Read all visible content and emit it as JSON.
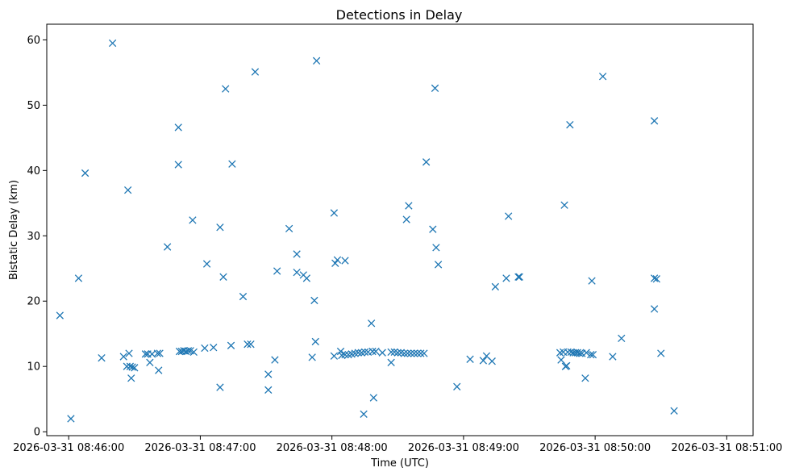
{
  "chart_data": {
    "type": "scatter",
    "title": "Detections in Delay",
    "xlabel": "Time (UTC)",
    "ylabel": "Bistatic Delay (km)",
    "marker": "x",
    "color": "#1f77b4",
    "grid": false,
    "x_unit": "seconds since 2026-03-31 08:46:00",
    "xlim": [
      -10,
      312
    ],
    "ylim": [
      -0.6,
      62.4
    ],
    "x_ticks": [
      {
        "value": 0,
        "label": "2026-03-31 08:46:00"
      },
      {
        "value": 60,
        "label": "2026-03-31 08:47:00"
      },
      {
        "value": 120,
        "label": "2026-03-31 08:48:00"
      },
      {
        "value": 180,
        "label": "2026-03-31 08:49:00"
      },
      {
        "value": 240,
        "label": "2026-03-31 08:50:00"
      },
      {
        "value": 300,
        "label": "2026-03-31 08:51:00"
      }
    ],
    "y_ticks": [
      {
        "value": 0,
        "label": "0"
      },
      {
        "value": 10,
        "label": "10"
      },
      {
        "value": 20,
        "label": "20"
      },
      {
        "value": 30,
        "label": "30"
      },
      {
        "value": 40,
        "label": "40"
      },
      {
        "value": 50,
        "label": "50"
      },
      {
        "value": 60,
        "label": "60"
      }
    ],
    "points": [
      {
        "x": -4,
        "y": 17.8
      },
      {
        "x": 1,
        "y": 2.0
      },
      {
        "x": 4.5,
        "y": 23.5
      },
      {
        "x": 7.5,
        "y": 39.6
      },
      {
        "x": 15,
        "y": 11.3
      },
      {
        "x": 20,
        "y": 59.5
      },
      {
        "x": 25,
        "y": 11.5
      },
      {
        "x": 26.5,
        "y": 10.0
      },
      {
        "x": 27,
        "y": 37.0
      },
      {
        "x": 27.5,
        "y": 12.0
      },
      {
        "x": 28,
        "y": 10.0
      },
      {
        "x": 28.5,
        "y": 8.2
      },
      {
        "x": 29,
        "y": 9.9
      },
      {
        "x": 30,
        "y": 9.8
      },
      {
        "x": 35,
        "y": 11.9
      },
      {
        "x": 36,
        "y": 11.9
      },
      {
        "x": 37,
        "y": 10.6
      },
      {
        "x": 38,
        "y": 11.9
      },
      {
        "x": 40.5,
        "y": 12.0
      },
      {
        "x": 41,
        "y": 9.4
      },
      {
        "x": 41.5,
        "y": 12.0
      },
      {
        "x": 45,
        "y": 28.3
      },
      {
        "x": 50,
        "y": 46.6
      },
      {
        "x": 50,
        "y": 40.9
      },
      {
        "x": 50.5,
        "y": 12.3
      },
      {
        "x": 51.5,
        "y": 12.3
      },
      {
        "x": 52.5,
        "y": 12.4
      },
      {
        "x": 53.5,
        "y": 12.3
      },
      {
        "x": 54.5,
        "y": 12.4
      },
      {
        "x": 55.5,
        "y": 12.4
      },
      {
        "x": 56.5,
        "y": 32.4
      },
      {
        "x": 57,
        "y": 12.2
      },
      {
        "x": 62,
        "y": 12.8
      },
      {
        "x": 63,
        "y": 25.7
      },
      {
        "x": 66,
        "y": 12.9
      },
      {
        "x": 69,
        "y": 31.3
      },
      {
        "x": 69,
        "y": 6.8
      },
      {
        "x": 70.5,
        "y": 23.7
      },
      {
        "x": 71.5,
        "y": 52.5
      },
      {
        "x": 74,
        "y": 13.2
      },
      {
        "x": 74.5,
        "y": 41.0
      },
      {
        "x": 79.5,
        "y": 20.7
      },
      {
        "x": 81.5,
        "y": 13.4
      },
      {
        "x": 83,
        "y": 13.4
      },
      {
        "x": 85,
        "y": 55.1
      },
      {
        "x": 91,
        "y": 8.8
      },
      {
        "x": 91,
        "y": 6.4
      },
      {
        "x": 94,
        "y": 11.0
      },
      {
        "x": 95,
        "y": 24.6
      },
      {
        "x": 100.5,
        "y": 31.1
      },
      {
        "x": 104,
        "y": 27.2
      },
      {
        "x": 104,
        "y": 24.4
      },
      {
        "x": 107,
        "y": 24.0
      },
      {
        "x": 108.5,
        "y": 23.5
      },
      {
        "x": 111,
        "y": 11.4
      },
      {
        "x": 112,
        "y": 20.1
      },
      {
        "x": 112.5,
        "y": 13.8
      },
      {
        "x": 113,
        "y": 56.8
      },
      {
        "x": 121,
        "y": 33.5
      },
      {
        "x": 121,
        "y": 11.6
      },
      {
        "x": 121.5,
        "y": 25.8
      },
      {
        "x": 122.5,
        "y": 26.3
      },
      {
        "x": 124,
        "y": 12.3
      },
      {
        "x": 124.5,
        "y": 11.7
      },
      {
        "x": 126,
        "y": 26.2
      },
      {
        "x": 126,
        "y": 11.8
      },
      {
        "x": 127.5,
        "y": 11.8
      },
      {
        "x": 129,
        "y": 11.9
      },
      {
        "x": 130.5,
        "y": 12.0
      },
      {
        "x": 132,
        "y": 12.1
      },
      {
        "x": 133.5,
        "y": 12.1
      },
      {
        "x": 134.5,
        "y": 2.7
      },
      {
        "x": 135,
        "y": 12.2
      },
      {
        "x": 136.5,
        "y": 12.2
      },
      {
        "x": 138,
        "y": 16.6
      },
      {
        "x": 138.5,
        "y": 12.3
      },
      {
        "x": 139,
        "y": 5.2
      },
      {
        "x": 140,
        "y": 12.3
      },
      {
        "x": 143,
        "y": 12.1
      },
      {
        "x": 147,
        "y": 12.2
      },
      {
        "x": 147,
        "y": 10.6
      },
      {
        "x": 148.5,
        "y": 12.2
      },
      {
        "x": 150,
        "y": 12.1
      },
      {
        "x": 151.5,
        "y": 12.1
      },
      {
        "x": 153,
        "y": 12.0
      },
      {
        "x": 154,
        "y": 32.5
      },
      {
        "x": 154.5,
        "y": 12.0
      },
      {
        "x": 155,
        "y": 34.6
      },
      {
        "x": 156,
        "y": 12.0
      },
      {
        "x": 157.5,
        "y": 12.0
      },
      {
        "x": 159,
        "y": 12.0
      },
      {
        "x": 160.5,
        "y": 12.0
      },
      {
        "x": 162,
        "y": 12.0
      },
      {
        "x": 163,
        "y": 41.3
      },
      {
        "x": 166,
        "y": 31.0
      },
      {
        "x": 167,
        "y": 52.6
      },
      {
        "x": 167.5,
        "y": 28.2
      },
      {
        "x": 168.5,
        "y": 25.6
      },
      {
        "x": 177,
        "y": 6.9
      },
      {
        "x": 183,
        "y": 11.1
      },
      {
        "x": 189,
        "y": 10.9
      },
      {
        "x": 190.5,
        "y": 11.6
      },
      {
        "x": 193,
        "y": 10.8
      },
      {
        "x": 194.5,
        "y": 22.2
      },
      {
        "x": 199.5,
        "y": 23.5
      },
      {
        "x": 200.5,
        "y": 33.0
      },
      {
        "x": 205,
        "y": 23.7
      },
      {
        "x": 205.5,
        "y": 23.7
      },
      {
        "x": 224,
        "y": 12.1
      },
      {
        "x": 224.5,
        "y": 11.0
      },
      {
        "x": 225.5,
        "y": 12.2
      },
      {
        "x": 226,
        "y": 34.7
      },
      {
        "x": 226.5,
        "y": 10.0
      },
      {
        "x": 227,
        "y": 10.1
      },
      {
        "x": 227.5,
        "y": 12.2
      },
      {
        "x": 228.5,
        "y": 47.0
      },
      {
        "x": 229,
        "y": 12.2
      },
      {
        "x": 230,
        "y": 12.1
      },
      {
        "x": 231,
        "y": 12.1
      },
      {
        "x": 232,
        "y": 12.1
      },
      {
        "x": 233,
        "y": 12.0
      },
      {
        "x": 234,
        "y": 12.0
      },
      {
        "x": 235.5,
        "y": 8.2
      },
      {
        "x": 236,
        "y": 12.1
      },
      {
        "x": 238,
        "y": 11.8
      },
      {
        "x": 238.5,
        "y": 23.1
      },
      {
        "x": 239,
        "y": 11.8
      },
      {
        "x": 243.5,
        "y": 54.4
      },
      {
        "x": 248,
        "y": 11.5
      },
      {
        "x": 252,
        "y": 14.3
      },
      {
        "x": 267,
        "y": 47.6
      },
      {
        "x": 267,
        "y": 23.5
      },
      {
        "x": 267,
        "y": 18.8
      },
      {
        "x": 268,
        "y": 23.4
      },
      {
        "x": 270,
        "y": 12.0
      },
      {
        "x": 276,
        "y": 3.2
      }
    ]
  }
}
